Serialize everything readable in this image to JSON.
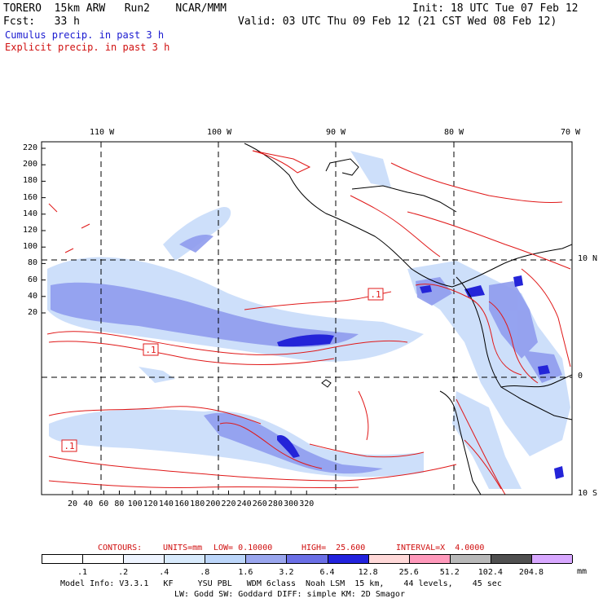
{
  "header": {
    "model": "TORERO  15km ARW   Run2    NCAR/MMM",
    "init": "Init: 18 UTC Tue 07 Feb 12",
    "fcst": "Fcst:   33 h",
    "valid": "Valid: 03 UTC Thu 09 Feb 12 (21 CST Wed 08 Feb 12)",
    "cumulus": "Cumulus precip. in past 3 h",
    "explicit": "Explicit precip. in past 3 h"
  },
  "colors": {
    "cumulus_text": "#1a1ad0",
    "explicit_text": "#d01010",
    "contour": "#e01818",
    "coast": "#000000"
  },
  "axes": {
    "top_lon_labels": [
      "110 W",
      "100 W",
      "90 W",
      "80 W",
      "70 W"
    ],
    "right_lat_labels": [
      "10 N",
      "0",
      "10 S"
    ],
    "y_ticks": [
      "220",
      "200",
      "180",
      "160",
      "140",
      "120",
      "100",
      "80",
      "60",
      "40",
      "20"
    ],
    "x_ticks": [
      "20",
      "40",
      "60",
      "80",
      "100",
      "120",
      "140",
      "160",
      "180",
      "200",
      "220",
      "240",
      "260",
      "280",
      "300",
      "320"
    ]
  },
  "contour_labels": [
    ".1",
    ".1",
    ".1"
  ],
  "contours_info": {
    "label": "CONTOURS:",
    "units": "UNITS=mm",
    "low": "LOW= 0.10000",
    "high": "HIGH=  25.600",
    "interval": "INTERVAL=X  4.0000"
  },
  "colorbar": {
    "labels": [
      ".1",
      ".2",
      ".4",
      ".8",
      "1.6",
      "3.2",
      "6.4",
      "12.8",
      "25.6",
      "51.2",
      "102.4",
      "204.8"
    ],
    "unit": "mm",
    "colors": [
      "#ffffff",
      "#ffffff",
      "#eef4ff",
      "#d8eafc",
      "#bcd6fa",
      "#9aa6ee",
      "#6b6fe6",
      "#2222dd",
      "#ffd8d8",
      "#ff99bb",
      "#b8b8b8",
      "#505050",
      "#d8a8ff"
    ]
  },
  "footer": {
    "line1": "Model Info: V3.3.1   KF     YSU PBL   WDM 6class  Noah LSM  15 km,    44 levels,    45 sec",
    "line2": "LW: Godd SW: Goddard DIFF: simple KM: 2D Smagor"
  }
}
